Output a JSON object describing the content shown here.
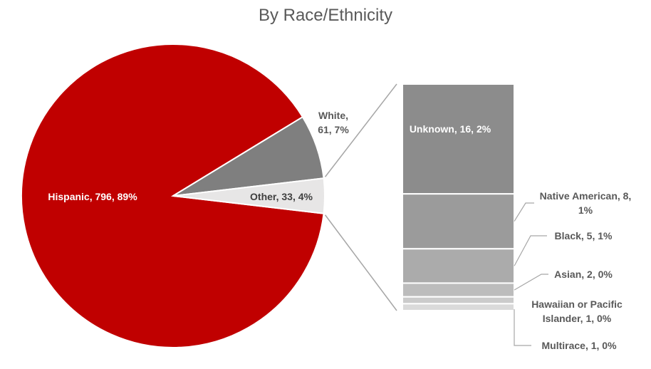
{
  "chart_data": {
    "type": "pie-of-bar",
    "title": "By Race/Ethnicity",
    "categories": [
      "Hispanic",
      "White",
      "Other"
    ],
    "values": [
      796,
      61,
      33
    ],
    "value_labels": [
      "Hispanic, 796, 89%",
      "White, 61, 7%",
      "Other, 33, 4%"
    ],
    "colors": [
      "#c00000",
      "#7f7f7f",
      "#e7e6e6"
    ],
    "breakdown": {
      "categories": [
        "Unknown",
        "Native American",
        "Black",
        "Asian",
        "Hawaiian or Pacific Islander",
        "Multirace"
      ],
      "values": [
        16,
        8,
        5,
        2,
        1,
        1
      ],
      "value_labels": [
        "Unknown, 16, 2%",
        "Native American, 8, 1%",
        "Black, 5, 1%",
        "Asian, 2, 0%",
        "Hawaiian or Pacific Islander, 1, 0%",
        "Multirace, 1, 0%"
      ],
      "colors": [
        "#8c8c8c",
        "#9b9b9b",
        "#ababab",
        "#bcbcbc",
        "#cbcbcb",
        "#dadada"
      ]
    }
  }
}
